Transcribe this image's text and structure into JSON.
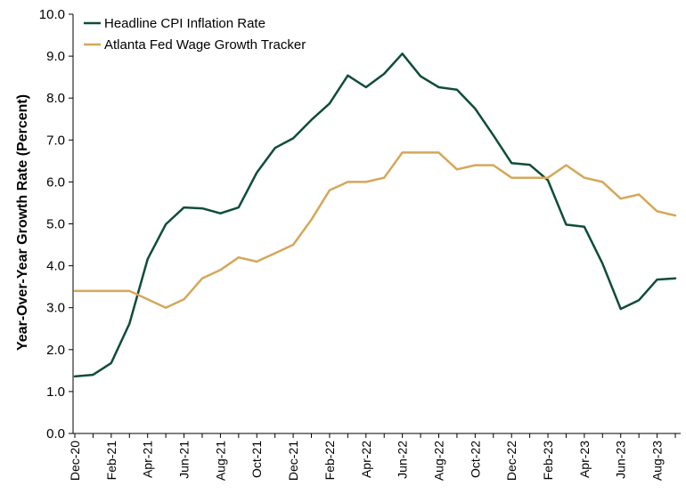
{
  "chart_data": {
    "type": "line",
    "title": "",
    "xlabel": "",
    "ylabel": "Year-Over-Year Growth Rate (Percent)",
    "ylim": [
      0,
      10
    ],
    "yticks": [
      "0.0",
      "1.0",
      "2.0",
      "3.0",
      "4.0",
      "5.0",
      "6.0",
      "7.0",
      "8.0",
      "9.0",
      "10.0"
    ],
    "x": [
      "Dec-20",
      "Jan-21",
      "Feb-21",
      "Mar-21",
      "Apr-21",
      "May-21",
      "Jun-21",
      "Jul-21",
      "Aug-21",
      "Sep-21",
      "Oct-21",
      "Nov-21",
      "Dec-21",
      "Jan-22",
      "Feb-22",
      "Mar-22",
      "Apr-22",
      "May-22",
      "Jun-22",
      "Jul-22",
      "Aug-22",
      "Sep-22",
      "Oct-22",
      "Nov-22",
      "Dec-22",
      "Jan-23",
      "Feb-23",
      "Mar-23",
      "Apr-23",
      "May-23",
      "Jun-23",
      "Jul-23",
      "Aug-23",
      "Sep-23"
    ],
    "xtick_labels": [
      "Dec-20",
      "Feb-21",
      "Apr-21",
      "Jun-21",
      "Aug-21",
      "Oct-21",
      "Dec-21",
      "Feb-22",
      "Apr-22",
      "Jun-22",
      "Aug-22",
      "Oct-22",
      "Dec-22",
      "Feb-23",
      "Apr-23",
      "Jun-23",
      "Aug-23"
    ],
    "grid": false,
    "legend_position": "top-left",
    "series": [
      {
        "name": "Headline CPI Inflation Rate",
        "color": "#0e4d3a",
        "values": [
          1.36,
          1.4,
          1.68,
          2.62,
          4.16,
          4.99,
          5.39,
          5.37,
          5.25,
          5.39,
          6.22,
          6.81,
          7.04,
          7.48,
          7.87,
          8.54,
          8.26,
          8.58,
          9.06,
          8.52,
          8.26,
          8.2,
          7.75,
          7.11,
          6.45,
          6.41,
          6.04,
          4.98,
          4.93,
          4.05,
          2.97,
          3.18,
          3.67,
          3.7
        ]
      },
      {
        "name": "Atlanta Fed Wage Growth Tracker",
        "color": "#d4a859",
        "values": [
          3.4,
          3.4,
          3.4,
          3.4,
          3.2,
          3.0,
          3.2,
          3.7,
          3.9,
          4.2,
          4.1,
          4.3,
          4.5,
          5.1,
          5.8,
          6.0,
          6.0,
          6.1,
          6.7,
          6.7,
          6.7,
          6.3,
          6.4,
          6.4,
          6.1,
          6.1,
          6.1,
          6.4,
          6.1,
          6.0,
          5.6,
          5.7,
          5.3,
          5.2
        ]
      }
    ]
  }
}
